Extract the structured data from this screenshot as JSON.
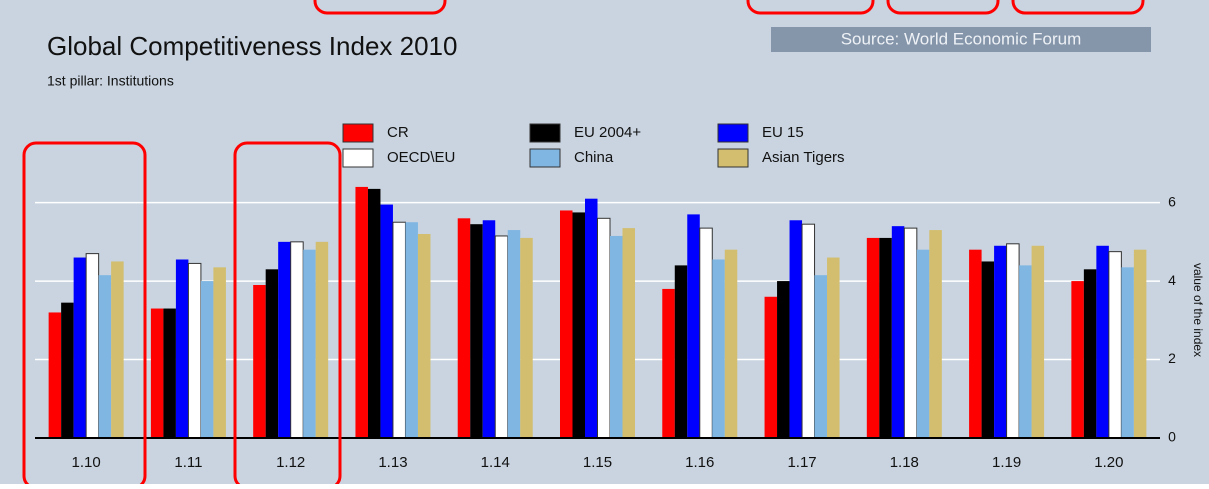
{
  "chart_data": {
    "type": "bar",
    "title": "Global Competitiveness Index 2010",
    "subtitle": "1st pillar: Institutions",
    "source": "Source: World Economic Forum",
    "y_label": "value of the index",
    "categories": [
      "1.10",
      "1.11",
      "1.12",
      "1.13",
      "1.14",
      "1.15",
      "1.16",
      "1.17",
      "1.18",
      "1.19",
      "1.20"
    ],
    "series": [
      {
        "name": "CR",
        "color": "#ff0000",
        "values": [
          3.2,
          3.3,
          3.9,
          6.4,
          5.6,
          5.8,
          3.8,
          3.6,
          5.1,
          4.8,
          4.0
        ]
      },
      {
        "name": "EU 2004+",
        "color": "#000000",
        "values": [
          3.45,
          3.3,
          4.3,
          6.35,
          5.45,
          5.75,
          4.4,
          4.0,
          5.1,
          4.5,
          4.3
        ]
      },
      {
        "name": "EU 15",
        "color": "#0000ff",
        "values": [
          4.6,
          4.55,
          5.0,
          5.95,
          5.55,
          6.1,
          5.7,
          5.55,
          5.4,
          4.9,
          4.9
        ]
      },
      {
        "name": "OECD\\EU",
        "color": "#ffffff",
        "values": [
          4.7,
          4.45,
          5.0,
          5.5,
          5.15,
          5.6,
          5.35,
          5.45,
          5.35,
          4.95,
          4.75
        ]
      },
      {
        "name": "China",
        "color": "#7fb6e2",
        "values": [
          4.15,
          4.0,
          4.8,
          5.5,
          5.3,
          5.15,
          4.55,
          4.15,
          4.8,
          4.4,
          4.35
        ]
      },
      {
        "name": "Asian Tigers",
        "color": "#d2be6e",
        "values": [
          4.5,
          4.35,
          5.0,
          5.2,
          5.1,
          5.35,
          4.8,
          4.6,
          5.3,
          4.9,
          4.8
        ]
      }
    ],
    "ylim": [
      0,
      6.5
    ],
    "yticks": [
      0,
      2,
      4,
      6
    ],
    "grid": true
  }
}
